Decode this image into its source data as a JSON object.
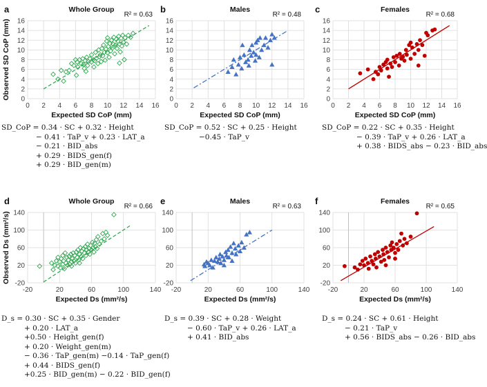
{
  "chart_data": [
    {
      "type": "scatter",
      "panel": "a",
      "title": "Whole Group",
      "r2": "R² = 0.63",
      "xlabel": "Expected SD CoP (mm)",
      "ylabel": "Observed SD CoP (mm)",
      "xlim": [
        0,
        16
      ],
      "ylim": [
        0,
        16
      ],
      "xticks": [
        "0",
        "2",
        "4",
        "6",
        "8",
        "10",
        "12",
        "14",
        "16"
      ],
      "yticks": [
        "0",
        "2",
        "4",
        "6",
        "8",
        "10",
        "12",
        "14",
        "16"
      ],
      "marker": "diamond-open",
      "color": "#2ea84f",
      "line_style": "dashed",
      "trend": {
        "x": [
          2,
          15.2
        ],
        "y": [
          2.0,
          15.0
        ]
      },
      "points": [
        [
          3.2,
          5
        ],
        [
          3.8,
          4
        ],
        [
          4.2,
          5.8
        ],
        [
          4.5,
          3.6
        ],
        [
          4.8,
          5.5
        ],
        [
          5.2,
          5.8
        ],
        [
          5.5,
          7.2
        ],
        [
          5.8,
          6.8
        ],
        [
          6,
          8
        ],
        [
          6.2,
          7.5
        ],
        [
          6.3,
          6.5
        ],
        [
          6.5,
          8
        ],
        [
          6.7,
          7.2
        ],
        [
          6.9,
          8.2
        ],
        [
          7,
          7
        ],
        [
          7.1,
          6.2
        ],
        [
          7.2,
          7.8
        ],
        [
          7.4,
          8.5
        ],
        [
          7.5,
          6.8
        ],
        [
          7.6,
          7.6
        ],
        [
          7.8,
          8.2
        ],
        [
          8,
          7.5
        ],
        [
          8,
          9
        ],
        [
          8.2,
          8
        ],
        [
          8.3,
          6.5
        ],
        [
          8.4,
          7.8
        ],
        [
          8.5,
          9.5
        ],
        [
          8.6,
          8.3
        ],
        [
          8.8,
          7.2
        ],
        [
          8.9,
          10
        ],
        [
          9,
          8.6
        ],
        [
          9.1,
          9
        ],
        [
          9.2,
          7.6
        ],
        [
          9.3,
          10.3
        ],
        [
          9.4,
          8.8
        ],
        [
          9.5,
          11
        ],
        [
          9.6,
          9.5
        ],
        [
          9.7,
          7.9
        ],
        [
          9.8,
          10.2
        ],
        [
          9.9,
          11.8
        ],
        [
          10,
          9.4
        ],
        [
          10,
          12.5
        ],
        [
          10.1,
          10.7
        ],
        [
          10.2,
          8.5
        ],
        [
          10.3,
          11.3
        ],
        [
          10.4,
          9.8
        ],
        [
          10.5,
          12
        ],
        [
          10.6,
          10.4
        ],
        [
          10.7,
          11.2
        ],
        [
          10.8,
          12.6
        ],
        [
          10.9,
          9.2
        ],
        [
          11,
          11
        ],
        [
          11.1,
          12.2
        ],
        [
          11.2,
          10.3
        ],
        [
          11.3,
          11.8
        ],
        [
          11.4,
          12.8
        ],
        [
          11.5,
          11.2
        ],
        [
          11.6,
          9.6
        ],
        [
          11.7,
          12.4
        ],
        [
          11.8,
          10.8
        ],
        [
          11.9,
          13
        ],
        [
          12,
          11.6
        ],
        [
          12.2,
          12.5
        ],
        [
          12.4,
          11.2
        ],
        [
          12.6,
          13
        ],
        [
          12.9,
          12.6
        ],
        [
          13.2,
          13.4
        ],
        [
          12.1,
          8
        ],
        [
          11.5,
          7.3
        ],
        [
          7.3,
          5.6
        ],
        [
          6.1,
          4.8
        ]
      ]
    },
    {
      "type": "scatter",
      "panel": "b",
      "title": "Males",
      "r2": "R² = 0.48",
      "xlabel": "Expected SD CoP (mm)",
      "ylabel": "",
      "xlim": [
        0,
        16
      ],
      "ylim": [
        0,
        16
      ],
      "xticks": [
        "0",
        "2",
        "4",
        "6",
        "8",
        "10",
        "12",
        "14",
        "16"
      ],
      "yticks": [
        "0",
        "2",
        "4",
        "6",
        "8",
        "10",
        "12",
        "14",
        "16"
      ],
      "marker": "triangle",
      "color": "#4472c4",
      "line_style": "dashdot",
      "trend": {
        "x": [
          2.2,
          14.0
        ],
        "y": [
          2.2,
          14.0
        ]
      },
      "points": [
        [
          6.5,
          5.5
        ],
        [
          7,
          6.5
        ],
        [
          7.2,
          8
        ],
        [
          7.5,
          5
        ],
        [
          7.8,
          7
        ],
        [
          8,
          8.5
        ],
        [
          8.2,
          6.2
        ],
        [
          8.5,
          9
        ],
        [
          8.7,
          7.5
        ],
        [
          9,
          8
        ],
        [
          9.2,
          10
        ],
        [
          9.4,
          8.8
        ],
        [
          9.5,
          11
        ],
        [
          9.7,
          9.5
        ],
        [
          10,
          9
        ],
        [
          10,
          11.5
        ],
        [
          10.2,
          12
        ],
        [
          10.4,
          8.5
        ],
        [
          10.5,
          12.5
        ],
        [
          10.7,
          10
        ],
        [
          11,
          11
        ],
        [
          11.2,
          12.5
        ],
        [
          11.5,
          10.5
        ],
        [
          11.8,
          12
        ],
        [
          12,
          13.2
        ],
        [
          12,
          7
        ],
        [
          12.3,
          12.5
        ],
        [
          9.9,
          7.8
        ],
        [
          9.1,
          6.8
        ],
        [
          8.3,
          11
        ]
      ]
    },
    {
      "type": "scatter",
      "panel": "c",
      "title": "Females",
      "r2": "R² = 0.68",
      "xlabel": "Expected SD CoP (mm)",
      "ylabel": "",
      "xlim": [
        0,
        16
      ],
      "ylim": [
        0,
        16
      ],
      "xticks": [
        "0",
        "2",
        "4",
        "6",
        "8",
        "10",
        "12",
        "14",
        "16"
      ],
      "yticks": [
        "0",
        "2",
        "4",
        "6",
        "8",
        "10",
        "12",
        "14",
        "16"
      ],
      "marker": "circle",
      "color": "#c00000",
      "line_style": "solid",
      "trend": {
        "x": [
          2.0,
          15.0
        ],
        "y": [
          2.0,
          15.0
        ]
      },
      "points": [
        [
          3.5,
          5.2
        ],
        [
          4.5,
          6
        ],
        [
          5.2,
          4
        ],
        [
          5.5,
          5.5
        ],
        [
          5.8,
          5
        ],
        [
          6,
          6.5
        ],
        [
          6.2,
          5.8
        ],
        [
          6.5,
          7
        ],
        [
          6.8,
          7.5
        ],
        [
          7,
          6.2
        ],
        [
          7,
          8
        ],
        [
          7.2,
          4.5
        ],
        [
          7.4,
          7.2
        ],
        [
          7.6,
          6.5
        ],
        [
          7.8,
          8.5
        ],
        [
          8,
          7.5
        ],
        [
          8.2,
          8.8
        ],
        [
          8.5,
          6.8
        ],
        [
          8.6,
          9.2
        ],
        [
          8.8,
          8.2
        ],
        [
          9,
          8.6
        ],
        [
          9.2,
          7.8
        ],
        [
          9.4,
          10
        ],
        [
          9.5,
          9
        ],
        [
          9.8,
          11
        ],
        [
          10,
          8.2
        ],
        [
          10,
          11.5
        ],
        [
          10.2,
          10.5
        ],
        [
          10.5,
          9.2
        ],
        [
          10.8,
          11.2
        ],
        [
          11,
          10
        ],
        [
          11.2,
          12
        ],
        [
          11.5,
          11
        ],
        [
          12,
          13.5
        ],
        [
          12.2,
          13
        ],
        [
          12.8,
          14
        ],
        [
          13.1,
          14.2
        ],
        [
          11.8,
          8.8
        ],
        [
          11,
          6.8
        ]
      ]
    },
    {
      "type": "scatter",
      "panel": "d",
      "title": "Whole Group",
      "r2": "R² = 0.66",
      "xlabel": "Expected Ds (mm²/s)",
      "ylabel": "Observed Ds (mm²/s)",
      "xlim": [
        -20,
        140
      ],
      "ylim": [
        -20,
        140
      ],
      "xticks": [
        "-20",
        "20",
        "60",
        "100",
        "140"
      ],
      "yticks": [
        "-20",
        "20",
        "60",
        "100",
        "140"
      ],
      "marker": "diamond-open",
      "color": "#2ea84f",
      "line_style": "dashed",
      "trend": {
        "x": [
          0,
          110
        ],
        "y": [
          -18,
          112
        ]
      },
      "points": [
        [
          -5,
          18
        ],
        [
          10,
          25
        ],
        [
          12,
          10
        ],
        [
          14,
          20
        ],
        [
          16,
          30
        ],
        [
          18,
          18
        ],
        [
          20,
          28
        ],
        [
          21,
          14
        ],
        [
          22,
          35
        ],
        [
          24,
          22
        ],
        [
          25,
          30
        ],
        [
          26,
          12
        ],
        [
          28,
          25
        ],
        [
          29,
          38
        ],
        [
          30,
          20
        ],
        [
          31,
          32
        ],
        [
          32,
          40
        ],
        [
          33,
          22
        ],
        [
          34,
          45
        ],
        [
          35,
          28
        ],
        [
          36,
          35
        ],
        [
          37,
          48
        ],
        [
          38,
          30
        ],
        [
          39,
          42
        ],
        [
          40,
          25
        ],
        [
          41,
          50
        ],
        [
          42,
          38
        ],
        [
          43,
          55
        ],
        [
          44,
          32
        ],
        [
          45,
          45
        ],
        [
          46,
          60
        ],
        [
          47,
          40
        ],
        [
          48,
          52
        ],
        [
          49,
          35
        ],
        [
          50,
          58
        ],
        [
          51,
          48
        ],
        [
          52,
          62
        ],
        [
          53,
          42
        ],
        [
          54,
          55
        ],
        [
          55,
          68
        ],
        [
          56,
          50
        ],
        [
          57,
          58
        ],
        [
          58,
          45
        ],
        [
          59,
          65
        ],
        [
          60,
          55
        ],
        [
          61,
          72
        ],
        [
          62,
          60
        ],
        [
          63,
          50
        ],
        [
          64,
          70
        ],
        [
          65,
          62
        ],
        [
          66,
          78
        ],
        [
          67,
          58
        ],
        [
          68,
          85
        ],
        [
          70,
          68
        ],
        [
          72,
          75
        ],
        [
          74,
          92
        ],
        [
          76,
          80
        ],
        [
          78,
          95
        ],
        [
          80,
          88
        ],
        [
          88,
          135
        ],
        [
          18,
          38
        ],
        [
          24,
          42
        ],
        [
          35,
          18
        ],
        [
          45,
          25
        ],
        [
          27,
          48
        ]
      ]
    },
    {
      "type": "scatter",
      "panel": "e",
      "title": "Males",
      "r2": "R² = 0.63",
      "xlabel": "Expected Ds (mm²/s)",
      "ylabel": "",
      "xlim": [
        -20,
        140
      ],
      "ylim": [
        -20,
        140
      ],
      "xticks": [
        "-20",
        "20",
        "60",
        "100",
        "140"
      ],
      "yticks": [
        "-20",
        "20",
        "60",
        "100",
        "140"
      ],
      "marker": "triangle",
      "color": "#4472c4",
      "line_style": "dashdot",
      "trend": {
        "x": [
          -2,
          100
        ],
        "y": [
          -15,
          100
        ]
      },
      "points": [
        [
          15,
          22
        ],
        [
          16,
          18
        ],
        [
          18,
          28
        ],
        [
          20,
          25
        ],
        [
          22,
          20
        ],
        [
          24,
          32
        ],
        [
          26,
          15
        ],
        [
          28,
          30
        ],
        [
          30,
          38
        ],
        [
          32,
          28
        ],
        [
          34,
          35
        ],
        [
          35,
          45
        ],
        [
          36,
          25
        ],
        [
          38,
          40
        ],
        [
          40,
          32
        ],
        [
          42,
          50
        ],
        [
          43,
          42
        ],
        [
          45,
          55
        ],
        [
          46,
          38
        ],
        [
          48,
          62
        ],
        [
          50,
          48
        ],
        [
          52,
          70
        ],
        [
          54,
          58
        ],
        [
          55,
          45
        ],
        [
          58,
          65
        ],
        [
          60,
          52
        ],
        [
          62,
          72
        ],
        [
          65,
          60
        ],
        [
          68,
          90
        ],
        [
          72,
          95
        ],
        [
          50,
          30
        ],
        [
          40,
          20
        ]
      ]
    },
    {
      "type": "scatter",
      "panel": "f",
      "title": "Females",
      "r2": "R² = 0.65",
      "xlabel": "Expected Ds (mm²/s)",
      "ylabel": "",
      "xlim": [
        -20,
        140
      ],
      "ylim": [
        -20,
        140
      ],
      "xticks": [
        "-20",
        "20",
        "60",
        "100",
        "140"
      ],
      "yticks": [
        "-20",
        "20",
        "60",
        "100",
        "140"
      ],
      "marker": "circle",
      "color": "#c00000",
      "line_style": "solid",
      "trend": {
        "x": [
          -10,
          110
        ],
        "y": [
          -15,
          108
        ]
      },
      "points": [
        [
          -5,
          18
        ],
        [
          8,
          15
        ],
        [
          12,
          10
        ],
        [
          15,
          22
        ],
        [
          18,
          30
        ],
        [
          20,
          20
        ],
        [
          22,
          35
        ],
        [
          25,
          25
        ],
        [
          26,
          12
        ],
        [
          28,
          40
        ],
        [
          30,
          30
        ],
        [
          32,
          22
        ],
        [
          34,
          45
        ],
        [
          35,
          35
        ],
        [
          36,
          15
        ],
        [
          38,
          50
        ],
        [
          40,
          40
        ],
        [
          42,
          28
        ],
        [
          44,
          55
        ],
        [
          45,
          45
        ],
        [
          46,
          32
        ],
        [
          48,
          60
        ],
        [
          50,
          50
        ],
        [
          52,
          38
        ],
        [
          54,
          65
        ],
        [
          55,
          55
        ],
        [
          56,
          72
        ],
        [
          58,
          60
        ],
        [
          60,
          48
        ],
        [
          62,
          68
        ],
        [
          64,
          55
        ],
        [
          66,
          75
        ],
        [
          68,
          92
        ],
        [
          70,
          65
        ],
        [
          72,
          80
        ],
        [
          75,
          70
        ],
        [
          80,
          85
        ],
        [
          88,
          138
        ],
        [
          48,
          20
        ],
        [
          60,
          35
        ]
      ]
    }
  ],
  "panel_letters": [
    "a",
    "b",
    "c",
    "d",
    "e",
    "f"
  ],
  "equations": {
    "a": [
      "SD_CoP = 0.34 · SC + 0.32 · Height",
      "− 0.41 · TaP_v + 0.23 · LAT_a",
      "− 0.21 · BID_abs",
      "+ 0.29 · BIDS_gen(f)",
      "+ 0.29 · BID_gen(m)"
    ],
    "b": [
      "SD_CoP = 0.52 · SC + 0.25 · Height",
      "−0.45 · TaP_v"
    ],
    "c": [
      "SD_CoP = 0.22 · SC + 0.35 · Height",
      "− 0.39 · TaP_v + 0.26 · LAT_a",
      "+ 0.38 · BIDS_abs − 0.23 · BID_abs"
    ],
    "d": [
      "D_s = 0.30 · SC + 0.35 · Gender",
      "+ 0.20 · LAT_a",
      "+0.50 · Height_gen(f)",
      "+ 0.20 · Weight_gen(m)",
      "− 0.36 · TaP_gen(m) −0.14 · TaP_gen(f)",
      "+ 0.44 · BIDS_gen(f)",
      "+0.25 · BID_gen(m) − 0.22 · BID_gen(f)"
    ],
    "e": [
      "D_s = 0.39 · SC + 0.28 · Weight",
      "− 0.60 · TaP_v + 0.26 · LAT_a",
      "+ 0.41 · BID_abs"
    ],
    "f": [
      "D_s = 0.24 · SC + 0.61 · Height",
      "− 0.21 · TaP_v",
      "+ 0.56 · BIDS_abs − 0.26 · BID_abs"
    ]
  }
}
